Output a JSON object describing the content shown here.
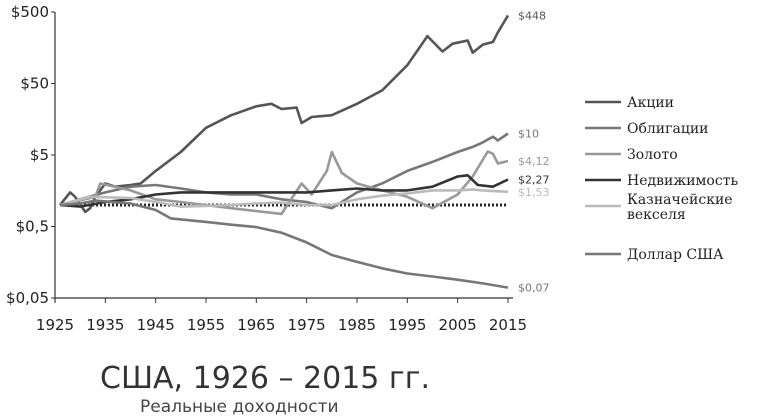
{
  "chart_data": {
    "type": "line",
    "title": "США, 1926 – 2015 гг.",
    "subtitle": "Реальные доходности",
    "x_ticks": [
      "1925",
      "1935",
      "1945",
      "1955",
      "1965",
      "1975",
      "1985",
      "1995",
      "2005",
      "2015"
    ],
    "x_tick_values": [
      1925,
      1935,
      1945,
      1955,
      1965,
      1975,
      1985,
      1995,
      2005,
      2015
    ],
    "y_ticks": [
      "$500",
      "$50",
      "$5",
      "$0,5",
      "$0,05"
    ],
    "y_tick_values": [
      500,
      50,
      5,
      0.5,
      0.05
    ],
    "y_scale": "log",
    "xlim": [
      1925,
      2016
    ],
    "ylim": [
      0.05,
      500
    ],
    "grid": false,
    "legend_position": "right",
    "series": [
      {
        "name": "Акции",
        "color": "#555555",
        "end_label": "$448",
        "points": [
          [
            1926,
            1
          ],
          [
            1928,
            1.5
          ],
          [
            1929,
            1.3
          ],
          [
            1931,
            0.8
          ],
          [
            1932,
            0.9
          ],
          [
            1933,
            1.3
          ],
          [
            1935,
            2.0
          ],
          [
            1937,
            1.8
          ],
          [
            1940,
            1.9
          ],
          [
            1942,
            2.0
          ],
          [
            1945,
            3.0
          ],
          [
            1950,
            5.5
          ],
          [
            1955,
            12
          ],
          [
            1960,
            18
          ],
          [
            1965,
            24
          ],
          [
            1968,
            26
          ],
          [
            1970,
            22
          ],
          [
            1973,
            23
          ],
          [
            1974,
            14
          ],
          [
            1976,
            17
          ],
          [
            1980,
            18
          ],
          [
            1985,
            26
          ],
          [
            1990,
            40
          ],
          [
            1995,
            90
          ],
          [
            1999,
            230
          ],
          [
            2002,
            140
          ],
          [
            2004,
            180
          ],
          [
            2007,
            200
          ],
          [
            2008,
            135
          ],
          [
            2010,
            175
          ],
          [
            2012,
            190
          ],
          [
            2013,
            260
          ],
          [
            2015,
            448
          ]
        ]
      },
      {
        "name": "Облигации",
        "color": "#777777",
        "end_label": "$10",
        "points": [
          [
            1926,
            1
          ],
          [
            1930,
            1.2
          ],
          [
            1935,
            1.5
          ],
          [
            1940,
            1.8
          ],
          [
            1945,
            1.9
          ],
          [
            1950,
            1.7
          ],
          [
            1955,
            1.5
          ],
          [
            1960,
            1.4
          ],
          [
            1965,
            1.4
          ],
          [
            1970,
            1.2
          ],
          [
            1975,
            1.1
          ],
          [
            1980,
            0.9
          ],
          [
            1985,
            1.5
          ],
          [
            1990,
            2.0
          ],
          [
            1995,
            3.0
          ],
          [
            2000,
            4.0
          ],
          [
            2005,
            5.5
          ],
          [
            2008,
            6.5
          ],
          [
            2010,
            7.5
          ],
          [
            2012,
            9.0
          ],
          [
            2013,
            8.0
          ],
          [
            2015,
            10
          ]
        ]
      },
      {
        "name": "Золото",
        "color": "#999999",
        "end_label": "$4,12",
        "points": [
          [
            1926,
            1
          ],
          [
            1933,
            1.3
          ],
          [
            1934,
            2.0
          ],
          [
            1940,
            1.6
          ],
          [
            1945,
            1.2
          ],
          [
            1950,
            1.1
          ],
          [
            1960,
            0.9
          ],
          [
            1970,
            0.75
          ],
          [
            1974,
            2.0
          ],
          [
            1976,
            1.4
          ],
          [
            1979,
            3.0
          ],
          [
            1980,
            5.5
          ],
          [
            1982,
            2.8
          ],
          [
            1985,
            2.0
          ],
          [
            1990,
            1.6
          ],
          [
            1995,
            1.3
          ],
          [
            2000,
            0.9
          ],
          [
            2005,
            1.4
          ],
          [
            2008,
            2.5
          ],
          [
            2011,
            5.6
          ],
          [
            2012,
            5.2
          ],
          [
            2013,
            3.8
          ],
          [
            2015,
            4.12
          ]
        ]
      },
      {
        "name": "Недвижимость",
        "color": "#333333",
        "end_label": "$2,27",
        "points": [
          [
            1926,
            1
          ],
          [
            1930,
            0.95
          ],
          [
            1935,
            1.1
          ],
          [
            1940,
            1.2
          ],
          [
            1945,
            1.4
          ],
          [
            1950,
            1.5
          ],
          [
            1955,
            1.5
          ],
          [
            1960,
            1.5
          ],
          [
            1965,
            1.5
          ],
          [
            1970,
            1.5
          ],
          [
            1975,
            1.5
          ],
          [
            1980,
            1.6
          ],
          [
            1985,
            1.7
          ],
          [
            1990,
            1.6
          ],
          [
            1995,
            1.6
          ],
          [
            2000,
            1.8
          ],
          [
            2005,
            2.5
          ],
          [
            2007,
            2.6
          ],
          [
            2009,
            1.9
          ],
          [
            2012,
            1.8
          ],
          [
            2015,
            2.27
          ]
        ]
      },
      {
        "name": "Казначейские векселя",
        "color": "#bbbbbb",
        "end_label": "$1,53",
        "points": [
          [
            1926,
            1
          ],
          [
            1932,
            1.3
          ],
          [
            1940,
            1.25
          ],
          [
            1945,
            1.1
          ],
          [
            1950,
            0.95
          ],
          [
            1955,
            0.97
          ],
          [
            1960,
            1.0
          ],
          [
            1965,
            1.05
          ],
          [
            1970,
            1.08
          ],
          [
            1975,
            1.0
          ],
          [
            1980,
            1.0
          ],
          [
            1985,
            1.2
          ],
          [
            1990,
            1.35
          ],
          [
            1995,
            1.45
          ],
          [
            2000,
            1.6
          ],
          [
            2005,
            1.6
          ],
          [
            2008,
            1.65
          ],
          [
            2010,
            1.6
          ],
          [
            2015,
            1.53
          ]
        ]
      },
      {
        "name": "Доллар США",
        "color": "#777777",
        "end_label": "$0,07",
        "points": [
          [
            1926,
            1
          ],
          [
            1930,
            1.05
          ],
          [
            1933,
            1.15
          ],
          [
            1940,
            1.05
          ],
          [
            1945,
            0.85
          ],
          [
            1948,
            0.65
          ],
          [
            1955,
            0.58
          ],
          [
            1960,
            0.53
          ],
          [
            1965,
            0.49
          ],
          [
            1970,
            0.41
          ],
          [
            1975,
            0.3
          ],
          [
            1980,
            0.2
          ],
          [
            1985,
            0.16
          ],
          [
            1990,
            0.13
          ],
          [
            1995,
            0.11
          ],
          [
            2000,
            0.1
          ],
          [
            2005,
            0.09
          ],
          [
            2010,
            0.08
          ],
          [
            2015,
            0.07
          ]
        ]
      }
    ],
    "baseline": {
      "value": 1,
      "style": "dotted"
    }
  }
}
